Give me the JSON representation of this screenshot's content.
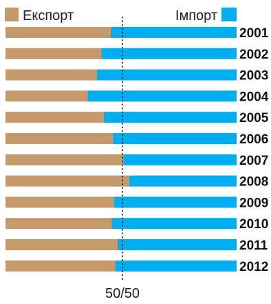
{
  "chart_data": {
    "type": "bar",
    "stacked": "percent",
    "orientation": "horizontal",
    "categories": [
      "2001",
      "2002",
      "2003",
      "2004",
      "2005",
      "2006",
      "2007",
      "2008",
      "2009",
      "2010",
      "2011",
      "2012"
    ],
    "series": [
      {
        "name": "Експорт",
        "color": "#c49a6c",
        "values": [
          45.5,
          41.5,
          39.5,
          35.5,
          42.5,
          46.5,
          51.0,
          53.5,
          47.0,
          46.0,
          48.5,
          47.5
        ]
      },
      {
        "name": "Імпорт",
        "color": "#00aeef",
        "values": [
          54.5,
          58.5,
          60.5,
          64.5,
          57.5,
          53.5,
          49.0,
          46.5,
          53.0,
          54.0,
          51.5,
          52.5
        ]
      }
    ],
    "xlim": [
      0,
      100
    ],
    "reference_line": {
      "value": 50,
      "label": "50/50"
    },
    "legend": "top",
    "grid": false
  }
}
